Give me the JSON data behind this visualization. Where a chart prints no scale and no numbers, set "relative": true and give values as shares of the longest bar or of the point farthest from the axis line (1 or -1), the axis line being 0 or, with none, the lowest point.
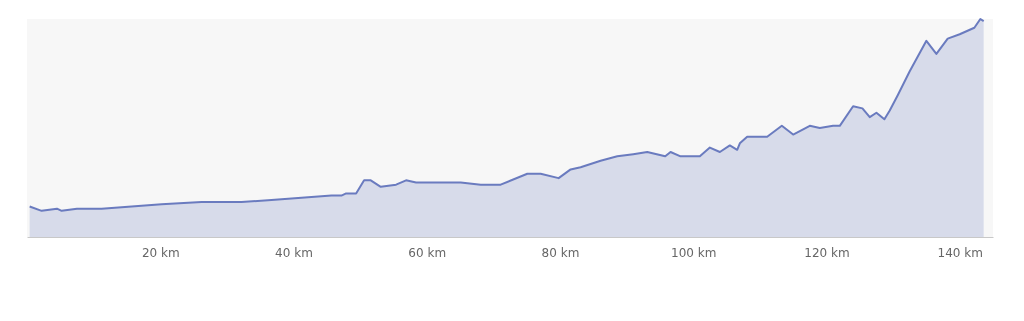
{
  "chart_data": {
    "type": "area",
    "relative": true,
    "grid": false,
    "legend": false,
    "marker": "none",
    "line_style": "solid",
    "xlim": [
      0,
      145
    ],
    "xticks": [
      {
        "value": 20,
        "label": "20 km"
      },
      {
        "value": 40,
        "label": "40 km"
      },
      {
        "value": 60,
        "label": "60 km"
      },
      {
        "value": 80,
        "label": "80 km"
      },
      {
        "value": 100,
        "label": "100 km"
      },
      {
        "value": 120,
        "label": "120 km"
      },
      {
        "value": 140,
        "label": "140 km"
      }
    ],
    "series": [
      {
        "color": "#6a7bbf",
        "x": [
          0.4,
          2.2,
          4.5,
          5.2,
          7.5,
          11.2,
          15.7,
          20.2,
          26.2,
          32.2,
          36.7,
          41.2,
          45.7,
          47.2,
          47.9,
          49.4,
          50.6,
          51.6,
          53.1,
          55.4,
          56.9,
          58.4,
          62.1,
          65.1,
          68.1,
          71.1,
          75.1,
          77.1,
          79.8,
          81.6,
          83.1,
          86.1,
          88.6,
          91.0,
          93.1,
          95.8,
          96.6,
          98.1,
          101.0,
          102.5,
          104.0,
          105.5,
          106.6,
          107.0,
          108.1,
          111.1,
          113.3,
          115.0,
          117.5,
          119.0,
          121.0,
          122.0,
          124.0,
          125.4,
          126.5,
          127.5,
          128.7,
          129.5,
          130.7,
          132.5,
          135.0,
          136.5,
          138.2,
          140.0,
          142.2,
          143.1,
          143.6
        ],
        "values": [
          0.14,
          0.12,
          0.13,
          0.12,
          0.13,
          0.13,
          0.14,
          0.15,
          0.16,
          0.16,
          0.17,
          0.18,
          0.19,
          0.19,
          0.2,
          0.2,
          0.26,
          0.26,
          0.23,
          0.24,
          0.26,
          0.25,
          0.25,
          0.25,
          0.24,
          0.24,
          0.29,
          0.29,
          0.27,
          0.31,
          0.32,
          0.35,
          0.37,
          0.38,
          0.39,
          0.37,
          0.39,
          0.37,
          0.37,
          0.41,
          0.39,
          0.42,
          0.4,
          0.43,
          0.46,
          0.46,
          0.51,
          0.47,
          0.51,
          0.5,
          0.51,
          0.51,
          0.6,
          0.59,
          0.55,
          0.57,
          0.54,
          0.58,
          0.65,
          0.76,
          0.9,
          0.84,
          0.91,
          0.93,
          0.96,
          1,
          0.99
        ]
      }
    ]
  }
}
